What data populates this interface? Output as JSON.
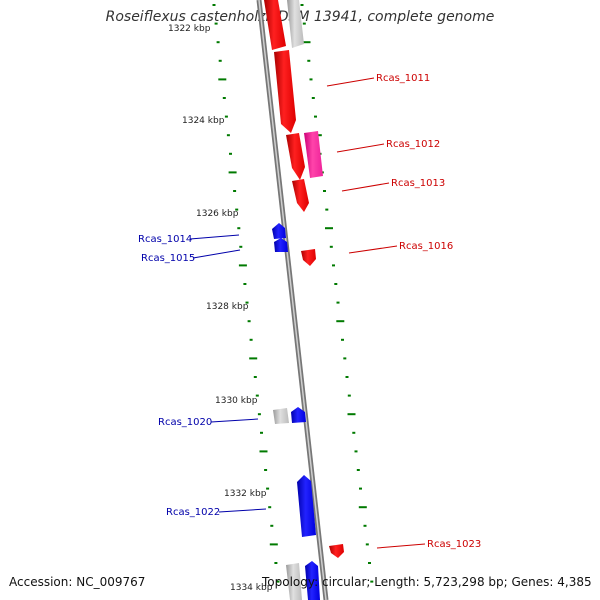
{
  "title": "Roseiflexus castenholzii DSM 13941, complete genome",
  "footer": {
    "accession": "Accession: NC_009767",
    "summary": "Topology: circular; Length: 5,723,298 bp; Genes: 4,385"
  },
  "colors": {
    "forward_red": "#ff0000",
    "forward_pink": "#ff33aa",
    "reverse_blue": "#0000ff",
    "hypothetical_grey": "#bbbbbb",
    "backbone": "#888888",
    "tick_green": "#007a00",
    "label_red": "#cc0000",
    "label_blue": "#0000aa"
  },
  "axis": {
    "tick_labels": [
      "1322 kbp",
      "1324 kbp",
      "1326 kbp",
      "1328 kbp",
      "1330 kbp",
      "1332 kbp",
      "1334 kbp"
    ]
  },
  "gene_labels": [
    {
      "name": "Rcas_1011",
      "side": "right",
      "color": "red"
    },
    {
      "name": "Rcas_1012",
      "side": "right",
      "color": "red"
    },
    {
      "name": "Rcas_1013",
      "side": "right",
      "color": "red"
    },
    {
      "name": "Rcas_1014",
      "side": "left",
      "color": "blue"
    },
    {
      "name": "Rcas_1015",
      "side": "left",
      "color": "blue"
    },
    {
      "name": "Rcas_1016",
      "side": "right",
      "color": "red"
    },
    {
      "name": "Rcas_1020",
      "side": "left",
      "color": "blue"
    },
    {
      "name": "Rcas_1022",
      "side": "left",
      "color": "blue"
    },
    {
      "name": "Rcas_1023",
      "side": "right",
      "color": "red"
    }
  ]
}
